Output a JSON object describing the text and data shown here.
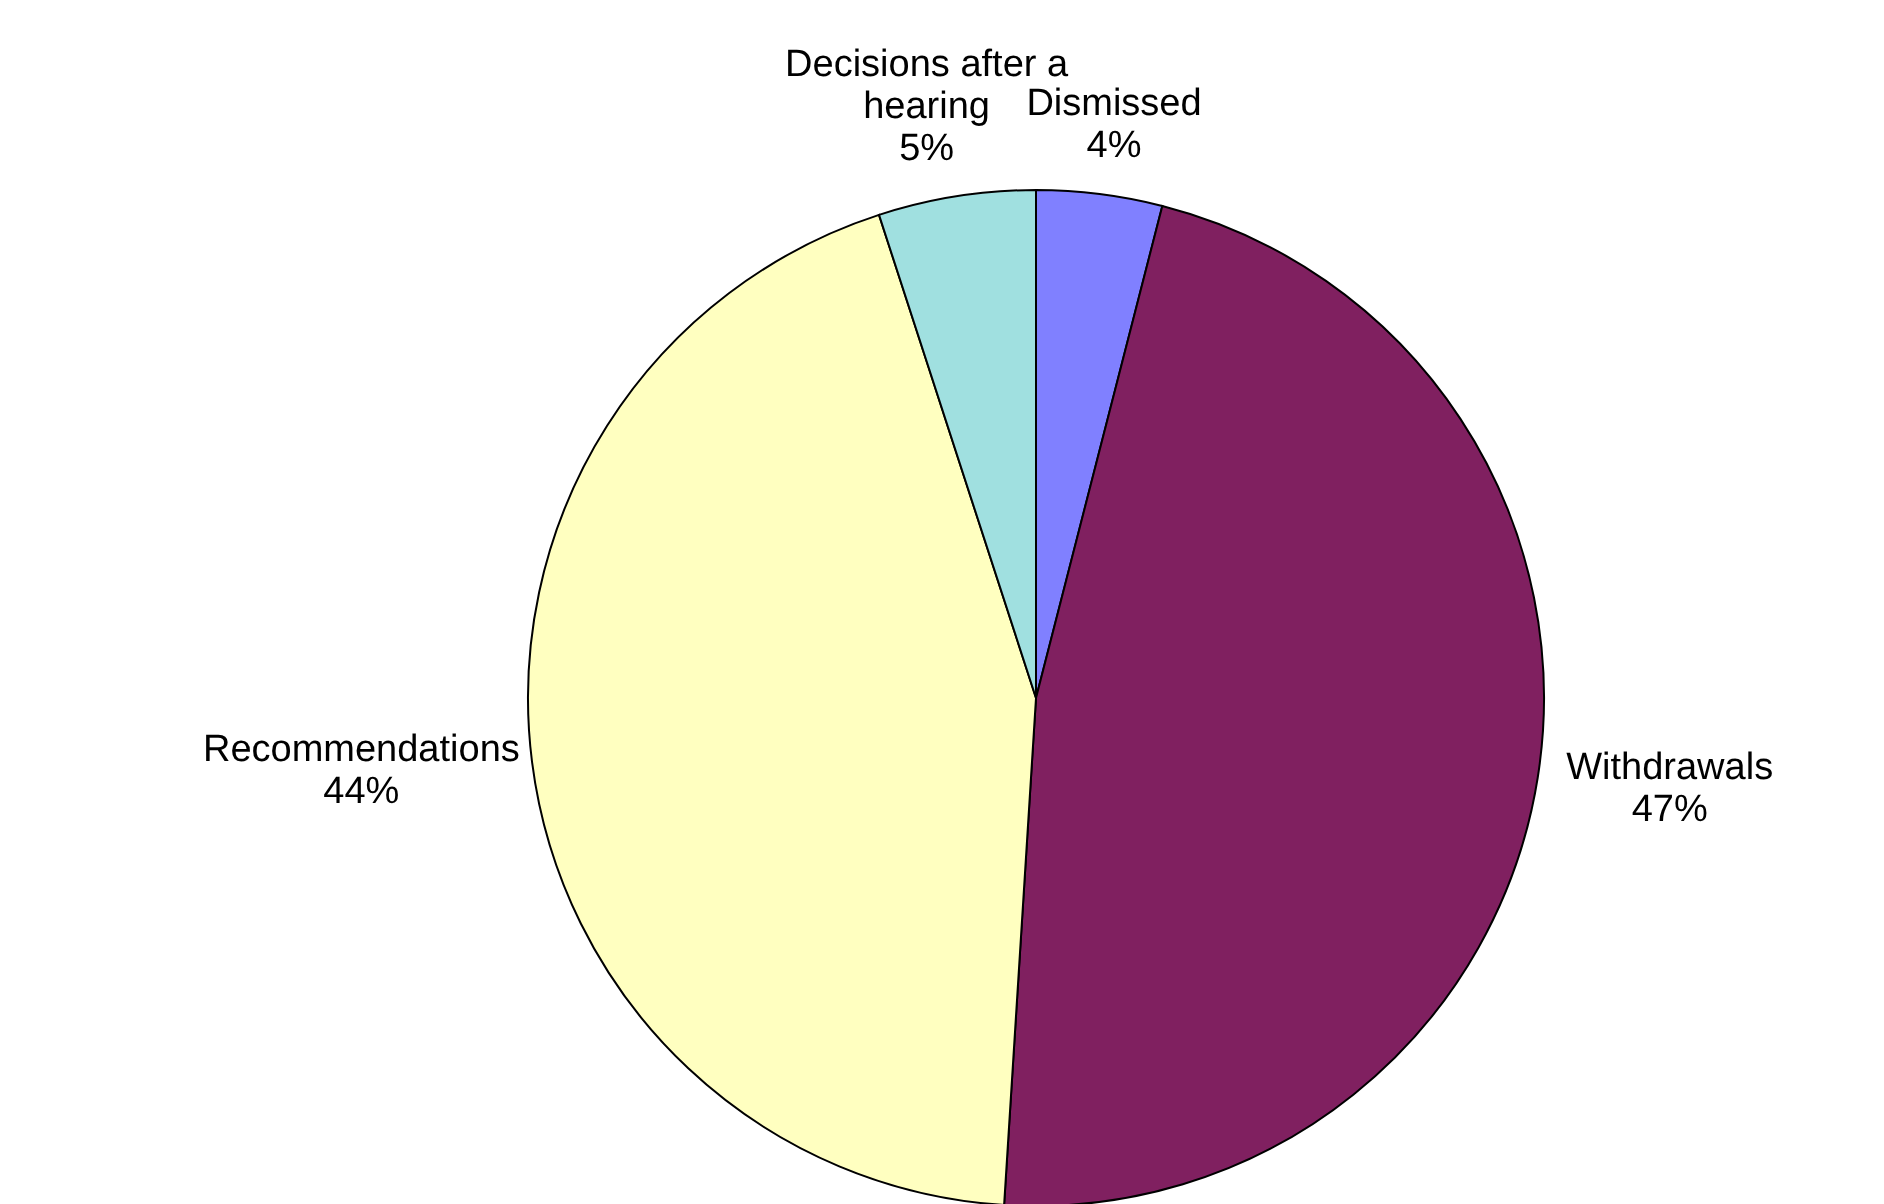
{
  "chart_data": {
    "type": "pie",
    "categories": [
      "Dismissed",
      "Withdrawals",
      "Recommendations",
      "Decisions after a hearing"
    ],
    "values": [
      4,
      47,
      44,
      5
    ],
    "value_labels": [
      "4%",
      "47%",
      "44%",
      "5%"
    ],
    "colors": [
      "#8080ff",
      "#802060",
      "#ffffc0",
      "#a0e0e0"
    ]
  }
}
